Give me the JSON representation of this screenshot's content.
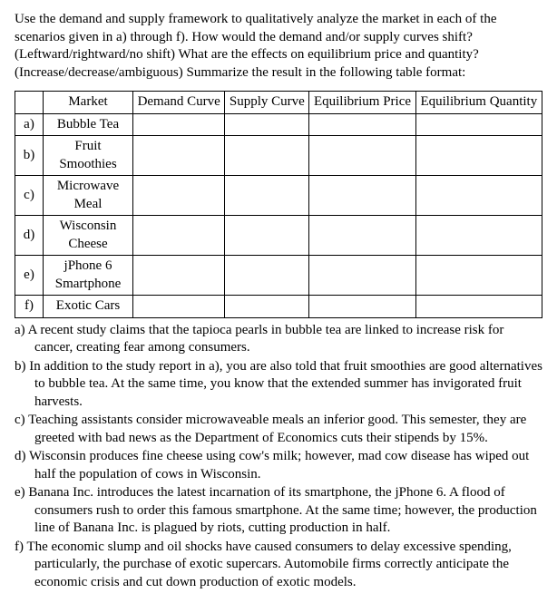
{
  "intro": {
    "line1": "Use the demand and supply framework to qualitatively analyze the market in each of the",
    "line2": "scenarios given in a) through f). How would the demand and/or supply curves shift?",
    "line3": "(Leftward/rightward/no shift) What are the effects on equilibrium price and quantity?",
    "line4": "(Increase/decrease/ambiguous) Summarize the result in the following table format:"
  },
  "table": {
    "headers": {
      "blank": "",
      "market": "Market",
      "demand": "Demand Curve",
      "supply": "Supply Curve",
      "price": "Equilibrium Price",
      "quantity": "Equilibrium Quantity"
    },
    "rows": [
      {
        "label": "a)",
        "market": "Bubble Tea"
      },
      {
        "label": "b)",
        "market": "Fruit Smoothies"
      },
      {
        "label": "c)",
        "market": "Microwave Meal"
      },
      {
        "label": "d)",
        "market": "Wisconsin Cheese"
      },
      {
        "label": "e)",
        "market": "jPhone 6 Smartphone"
      },
      {
        "label": "f)",
        "market": "Exotic Cars"
      }
    ]
  },
  "scenarios": {
    "a": "a) A recent study claims that the tapioca pearls in bubble tea are linked to increase risk for cancer, creating fear among consumers.",
    "b": "b) In addition to the study report in a), you are also told that fruit smoothies are good alternatives to bubble tea. At the same time, you know that the extended summer has invigorated fruit harvests.",
    "c": "c) Teaching assistants consider microwaveable meals an inferior good. This semester, they are greeted with bad news as the Department of Economics cuts their stipends by 15%.",
    "d": "d) Wisconsin produces fine cheese using cow's milk; however, mad cow disease has wiped out half the population of cows in Wisconsin.",
    "e": "e) Banana Inc. introduces the latest incarnation of its smartphone, the jPhone 6. A flood of consumers rush to order this famous smartphone. At the same time; however, the production line of Banana Inc. is plagued by riots, cutting production in half.",
    "f": "f) The economic slump and oil shocks have caused consumers to delay excessive spending, particularly, the purchase of exotic supercars. Automobile firms correctly anticipate the economic crisis and cut down production of exotic models."
  }
}
